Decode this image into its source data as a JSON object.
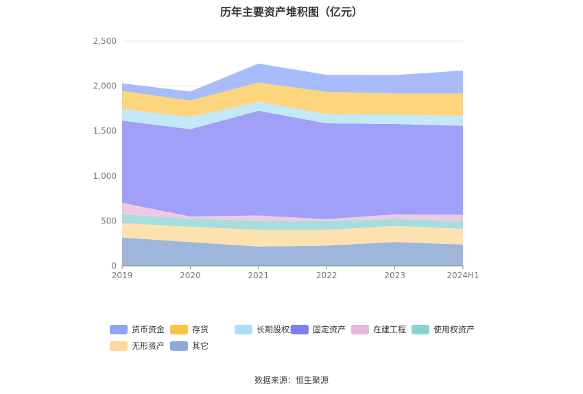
{
  "chart_data": {
    "type": "area",
    "stacked": true,
    "title": "历年主要资产堆积图（亿元）",
    "categories": [
      "2019",
      "2020",
      "2021",
      "2022",
      "2023",
      "2024H1"
    ],
    "y_ticks": [
      "0",
      "500",
      "1,000",
      "1,500",
      "2,000",
      "2,500"
    ],
    "ylim": [
      0,
      2500
    ],
    "grid": true,
    "legend_position": "bottom",
    "series": [
      {
        "name": "其它",
        "color": "#9fb6dc",
        "values": [
          315,
          265,
          215,
          225,
          265,
          238
        ]
      },
      {
        "name": "无形资产",
        "color": "#fde2b0",
        "values": [
          160,
          170,
          185,
          175,
          178,
          175
        ]
      },
      {
        "name": "使用权资产",
        "color": "#a6dedd",
        "values": [
          100,
          90,
          100,
          95,
          80,
          85
        ]
      },
      {
        "name": "在建工程",
        "color": "#eecae2",
        "values": [
          125,
          25,
          60,
          25,
          50,
          70
        ]
      },
      {
        "name": "固定资产",
        "color": "#a0a0f8",
        "values": [
          915,
          970,
          1165,
          1065,
          1005,
          990
        ]
      },
      {
        "name": "长期股权投资",
        "color": "#c3e8f8",
        "values": [
          130,
          135,
          100,
          105,
          105,
          110
        ]
      },
      {
        "name": "存货",
        "color": "#fdd57c",
        "values": [
          200,
          185,
          215,
          245,
          235,
          250
        ]
      },
      {
        "name": "货币资金",
        "color": "#a8bcfb",
        "values": [
          85,
          100,
          210,
          190,
          205,
          255
        ]
      }
    ],
    "legend": [
      {
        "name": "货币资金",
        "color": "#8ea5f8"
      },
      {
        "name": "存货",
        "color": "#fbc33f"
      },
      {
        "name": "长期股权投资",
        "color": "#a8dff7"
      },
      {
        "name": "固定资产",
        "color": "#7d80f0"
      },
      {
        "name": "在建工程",
        "color": "#e8b8d8"
      },
      {
        "name": "使用权资产",
        "color": "#86d4d2"
      },
      {
        "name": "无形资产",
        "color": "#fdd89a"
      },
      {
        "name": "其它",
        "color": "#8fa9dc"
      }
    ]
  },
  "source": "数据来源：恒生聚源"
}
